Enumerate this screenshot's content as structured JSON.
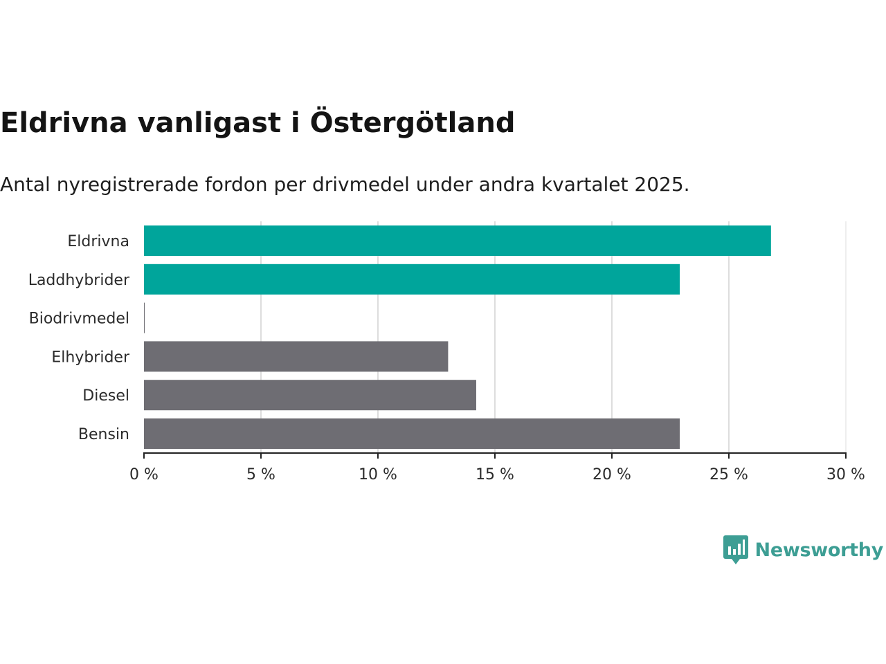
{
  "chart_data": {
    "type": "bar",
    "orientation": "horizontal",
    "title": "Eldrivna vanligast i Östergötland",
    "subtitle": "Antal nyregistrerade fordon per drivmedel under andra kvartalet 2025.",
    "categories": [
      "Eldrivna",
      "Laddhybrider",
      "Biodrivmedel",
      "Elhybrider",
      "Diesel",
      "Bensin"
    ],
    "values": [
      26.8,
      22.9,
      0.03,
      13.0,
      14.2,
      22.9
    ],
    "bar_colors": [
      "#00a59b",
      "#00a59b",
      "#6e6d73",
      "#6e6d73",
      "#6e6d73",
      "#6e6d73"
    ],
    "xlim": [
      0,
      30
    ],
    "x_ticks": [
      0,
      5,
      10,
      15,
      20,
      25,
      30
    ],
    "x_tick_labels": [
      "0 %",
      "5 %",
      "10 %",
      "15 %",
      "20 %",
      "25 %",
      "30 %"
    ],
    "grid": true,
    "xlabel": "",
    "ylabel": ""
  },
  "logo": {
    "name": "Newsworthy",
    "icon": "newsworthy-bar-chart-icon",
    "color": "#3d9e94"
  }
}
